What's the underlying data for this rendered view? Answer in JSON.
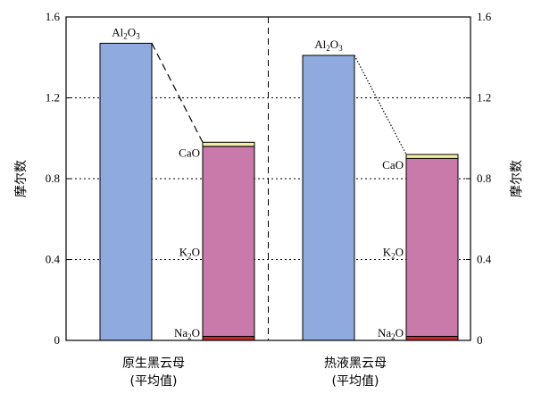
{
  "chart_data": {
    "type": "bar",
    "ylabel": "摩尔数",
    "ylim": [
      0,
      1.6
    ],
    "yticks": [
      "0",
      "0.4",
      "0.8",
      "1.2",
      "1.6"
    ],
    "grid": "dotted horizontal at 0.4, 0.8, 1.2",
    "categories": [
      {
        "line1": "原生黑云母",
        "line2": "(平均值)"
      },
      {
        "line1": "热液黑云母",
        "line2": "(平均值)"
      }
    ],
    "series": [
      {
        "name": "Al₂O₃",
        "values": [
          1.47,
          1.41
        ]
      },
      {
        "name": "Na₂O",
        "values": [
          0.02,
          0.02
        ]
      },
      {
        "name": "K₂O",
        "values": [
          0.94,
          0.88
        ]
      },
      {
        "name": "CaO",
        "values": [
          0.02,
          0.02
        ]
      }
    ],
    "stack_labels": {
      "al": {
        "main": "Al",
        "sub1": "2",
        "mid": "O",
        "sub2": "3"
      },
      "cao": {
        "main": "CaO"
      },
      "k": {
        "main": "K",
        "sub1": "2",
        "mid": "O"
      },
      "na": {
        "main": "Na",
        "sub1": "2",
        "mid": "O"
      }
    },
    "colors": {
      "al": "#8eaadf",
      "k": "#c979aa",
      "na": "#c0282e",
      "cao": "#f4eea4"
    }
  }
}
